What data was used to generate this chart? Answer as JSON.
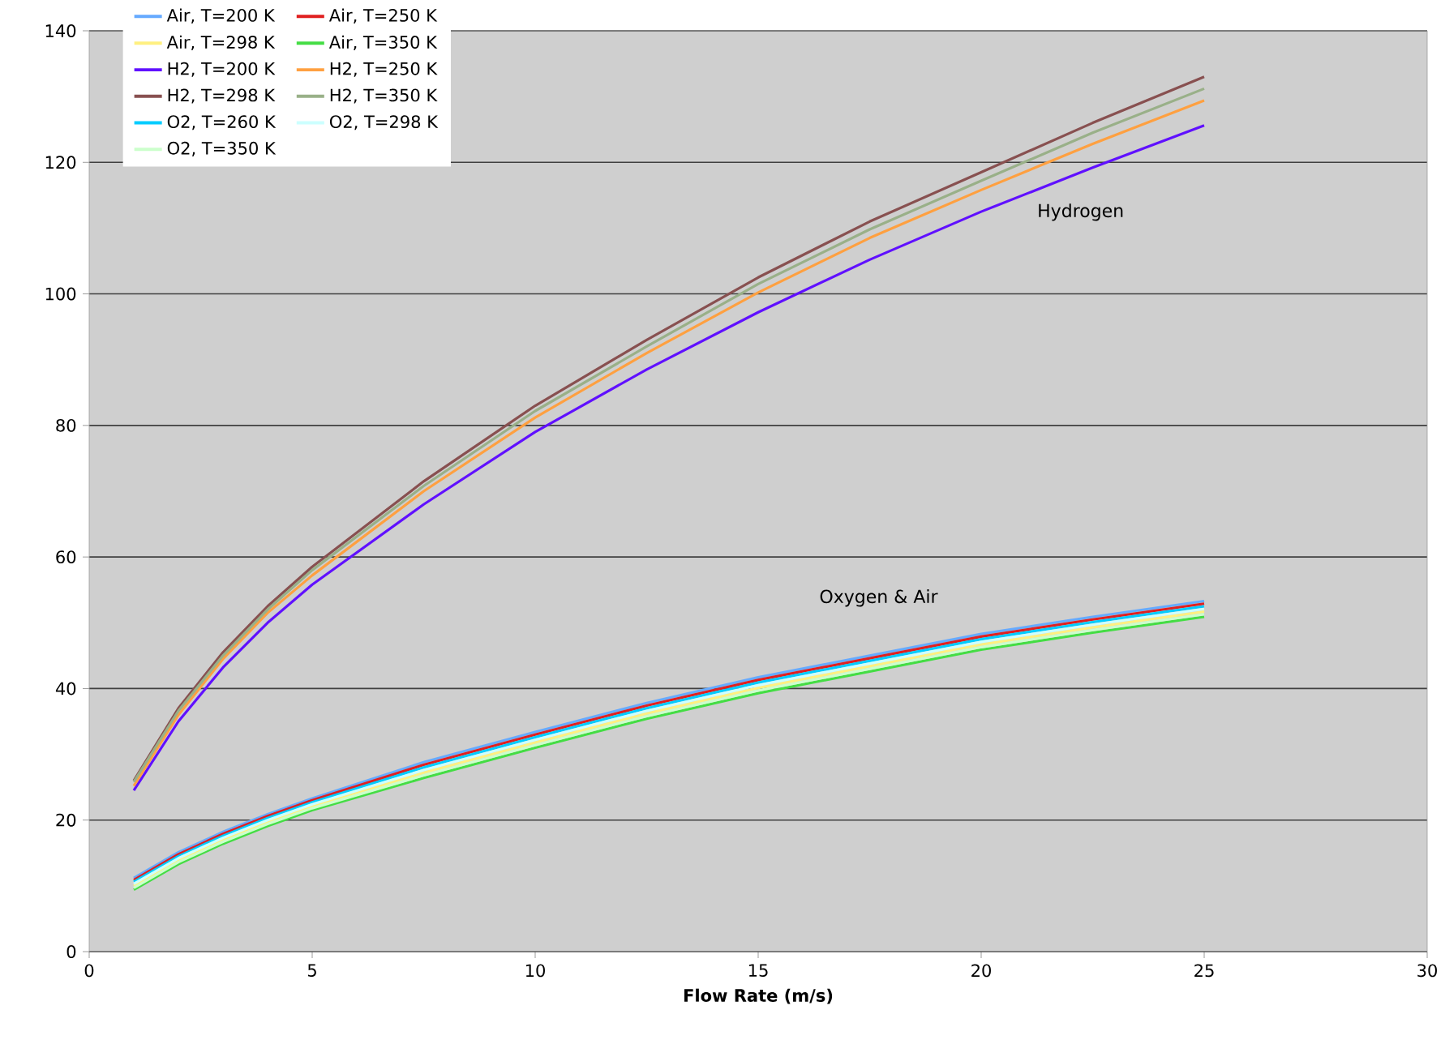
{
  "chart_data": {
    "type": "line",
    "xlabel": "Flow Rate (m/s)",
    "x": [
      1,
      2,
      3,
      4,
      5,
      7.5,
      10,
      12.5,
      15,
      17.5,
      20,
      22.5,
      25
    ],
    "xlim": [
      0,
      30
    ],
    "xticks": [
      0,
      5,
      10,
      15,
      20,
      25,
      30
    ],
    "ylim": [
      0,
      140
    ],
    "yticks": [
      0,
      20,
      40,
      60,
      80,
      100,
      120,
      140
    ],
    "grid": "y",
    "legend": "top left",
    "annotations": [
      "Hydrogen",
      "Oxygen & Air"
    ],
    "series": [
      {
        "name": "Air, T=200 K",
        "color": "#66aaff",
        "values": [
          11.2,
          15.1,
          18.2,
          20.9,
          23.3,
          28.8,
          33.4,
          37.8,
          41.7,
          45.0,
          48.3,
          50.9,
          53.3
        ]
      },
      {
        "name": "Air, T=250 K",
        "color": "#e02020",
        "values": [
          10.9,
          14.8,
          17.9,
          20.6,
          23.0,
          28.4,
          33.0,
          37.4,
          41.3,
          44.6,
          47.9,
          50.5,
          52.9
        ]
      },
      {
        "name": "Air, T=298 K",
        "color": "#fff080",
        "values": [
          10.0,
          13.9,
          17.0,
          19.7,
          22.1,
          27.2,
          31.8,
          36.2,
          40.1,
          43.4,
          46.7,
          49.3,
          51.7
        ]
      },
      {
        "name": "Air, T=350 K",
        "color": "#44dd44",
        "values": [
          9.4,
          13.3,
          16.4,
          19.1,
          21.5,
          26.4,
          31.0,
          35.4,
          39.3,
          42.6,
          45.9,
          48.5,
          50.9
        ]
      },
      {
        "name": "H2, T=200 K",
        "color": "#6010ff",
        "values": [
          24.5,
          35,
          43.2,
          50,
          55.8,
          68,
          79,
          88.5,
          97.2,
          105.2,
          112.5,
          119.2,
          125.6
        ]
      },
      {
        "name": "H2, T=250 K",
        "color": "#ffa040",
        "values": [
          25.2,
          36,
          44.5,
          51.5,
          57.2,
          70,
          81.2,
          91,
          100.2,
          108.5,
          115.8,
          122.8,
          129.4
        ]
      },
      {
        "name": "H2, T=298 K",
        "color": "#885050",
        "values": [
          26,
          37,
          45.5,
          52.5,
          58.5,
          71.5,
          83,
          93,
          102.5,
          111,
          118.5,
          126,
          133
        ]
      },
      {
        "name": "H2, T=350 K",
        "color": "#99b088",
        "values": [
          25.8,
          36.6,
          45,
          52,
          58,
          70.8,
          82.2,
          92,
          101.5,
          109.8,
          117.2,
          124.5,
          131.2
        ]
      },
      {
        "name": "O2, T=260 K",
        "color": "#00ccff",
        "values": [
          10.6,
          14.5,
          17.6,
          20.3,
          22.7,
          28.0,
          32.6,
          37.0,
          40.9,
          44.2,
          47.5,
          50.1,
          52.5
        ]
      },
      {
        "name": "O2, T=298 K",
        "color": "#ccffff",
        "values": [
          10.3,
          14.2,
          17.3,
          20.0,
          22.4,
          27.6,
          32.2,
          36.6,
          40.5,
          43.8,
          47.1,
          49.7,
          52.1
        ]
      },
      {
        "name": "O2, T=350 K",
        "color": "#ccffcc",
        "values": [
          9.7,
          13.6,
          16.7,
          19.4,
          21.8,
          26.8,
          31.4,
          35.8,
          39.7,
          43.0,
          46.3,
          48.9,
          51.3
        ]
      }
    ]
  }
}
